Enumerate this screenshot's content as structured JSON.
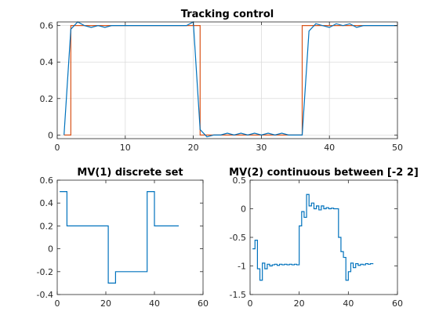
{
  "colors": {
    "reference": "#d95319",
    "output": "#0072bd",
    "mv": "#0072bd",
    "grid": "#dcdcdc",
    "axis": "#262626"
  },
  "chart_data": [
    {
      "type": "line",
      "title": "Tracking control",
      "xlabel": "",
      "ylabel": "",
      "xlim": [
        0,
        50
      ],
      "ylim": [
        -0.02,
        0.62
      ],
      "xticks": [
        0,
        10,
        20,
        30,
        40,
        50
      ],
      "yticks": [
        0,
        0.2,
        0.4,
        0.6
      ],
      "grid": true,
      "series": [
        {
          "color": "#d95319",
          "step": true,
          "x": [
            1,
            2,
            20,
            21,
            35,
            36,
            50
          ],
          "y": [
            0,
            0.6,
            0.6,
            0,
            0,
            0.6,
            0.6
          ]
        },
        {
          "color": "#0072bd",
          "step": false,
          "x": [
            1,
            2,
            3,
            4,
            5,
            6,
            7,
            8,
            9,
            10,
            11,
            12,
            13,
            14,
            15,
            16,
            17,
            18,
            19,
            20,
            21,
            22,
            23,
            24,
            25,
            26,
            27,
            28,
            29,
            30,
            31,
            32,
            33,
            34,
            35,
            36,
            37,
            38,
            39,
            40,
            41,
            42,
            43,
            44,
            45,
            46,
            47,
            48,
            49,
            50
          ],
          "y": [
            0,
            0.58,
            0.62,
            0.6,
            0.59,
            0.6,
            0.59,
            0.6,
            0.6,
            0.6,
            0.6,
            0.6,
            0.6,
            0.6,
            0.6,
            0.6,
            0.6,
            0.6,
            0.6,
            0.62,
            0.03,
            -0.01,
            0,
            0,
            0.01,
            0,
            0.01,
            0,
            0.01,
            0,
            0.01,
            0,
            0.01,
            0,
            0,
            0,
            0.57,
            0.61,
            0.6,
            0.59,
            0.61,
            0.6,
            0.61,
            0.59,
            0.6,
            0.6,
            0.6,
            0.6,
            0.6,
            0.6
          ]
        }
      ]
    },
    {
      "type": "line",
      "title": "MV(1) discrete set",
      "xlabel": "",
      "ylabel": "",
      "xlim": [
        0,
        60
      ],
      "ylim": [
        -0.4,
        0.6
      ],
      "xticks": [
        0,
        20,
        40,
        60
      ],
      "yticks": [
        -0.4,
        -0.2,
        0,
        0.2,
        0.4,
        0.6
      ],
      "grid": false,
      "series": [
        {
          "color": "#0072bd",
          "step": true,
          "x": [
            1,
            4,
            21,
            24,
            37,
            40,
            50
          ],
          "y": [
            0.5,
            0.2,
            -0.3,
            -0.2,
            0.5,
            0.2,
            0.2
          ]
        }
      ]
    },
    {
      "type": "line",
      "title": "MV(2) continuous between [-2 2]",
      "xlabel": "",
      "ylabel": "",
      "xlim": [
        0,
        60
      ],
      "ylim": [
        -1.5,
        0.5
      ],
      "xticks": [
        0,
        20,
        40,
        60
      ],
      "yticks": [
        -1.5,
        -1,
        -0.5,
        0,
        0.5
      ],
      "grid": false,
      "series": [
        {
          "color": "#0072bd",
          "step": true,
          "x": [
            1,
            2,
            3,
            4,
            5,
            6,
            7,
            8,
            9,
            10,
            11,
            12,
            13,
            14,
            15,
            16,
            17,
            18,
            19,
            20,
            21,
            22,
            23,
            24,
            25,
            26,
            27,
            28,
            29,
            30,
            31,
            32,
            33,
            34,
            35,
            36,
            37,
            38,
            39,
            40,
            41,
            42,
            43,
            44,
            45,
            46,
            47,
            48,
            49,
            50
          ],
          "y": [
            -0.7,
            -0.55,
            -1.05,
            -1.25,
            -0.95,
            -1.05,
            -0.97,
            -1.0,
            -0.98,
            -0.97,
            -0.99,
            -0.97,
            -0.98,
            -0.97,
            -0.98,
            -0.97,
            -0.98,
            -0.97,
            -0.98,
            -0.3,
            -0.05,
            -0.15,
            0.25,
            0.05,
            0.1,
            0.0,
            0.05,
            -0.02,
            0.05,
            0.0,
            0.02,
            0.0,
            0.01,
            0.0,
            0.0,
            -0.5,
            -0.75,
            -0.85,
            -1.25,
            -1.1,
            -0.95,
            -1.03,
            -0.96,
            -0.99,
            -0.97,
            -0.98,
            -0.96,
            -0.97,
            -0.96,
            -0.97
          ]
        }
      ]
    }
  ]
}
